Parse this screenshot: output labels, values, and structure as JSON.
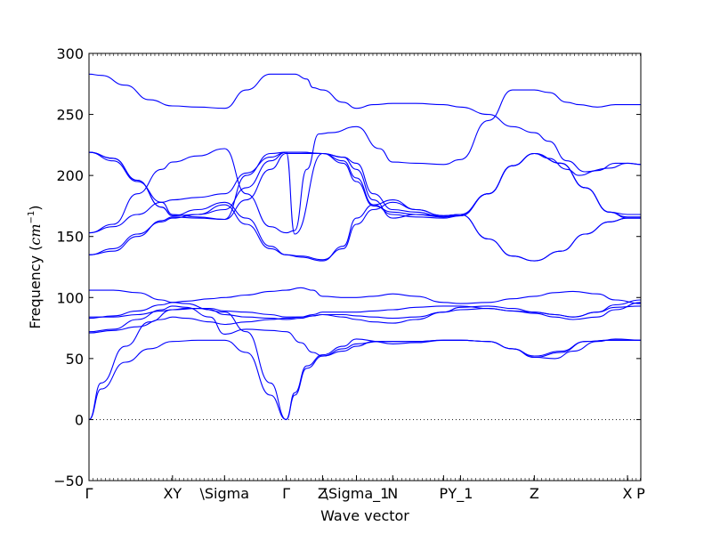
{
  "chart_data": {
    "type": "line",
    "title": "",
    "xlabel": "Wave vector",
    "ylabel_text": "Frequency (",
    "ylabel_math": "cm",
    "ylabel_exp": "−1",
    "ylabel_close": ")",
    "ylim": [
      -50,
      300
    ],
    "yticks": [
      -50,
      0,
      50,
      100,
      150,
      200,
      250,
      300
    ],
    "xlim": [
      0,
      4.56
    ],
    "xticks": [
      {
        "x": 0.0,
        "label": "Γ"
      },
      {
        "x": 0.69,
        "label": "XY"
      },
      {
        "x": 1.12,
        "label": "\\Sigma"
      },
      {
        "x": 1.63,
        "label": "Γ"
      },
      {
        "x": 1.93,
        "label": "Z"
      },
      {
        "x": 2.21,
        "label": "\\Sigma_1"
      },
      {
        "x": 2.51,
        "label": "N"
      },
      {
        "x": 2.93,
        "label": "P"
      },
      {
        "x": 3.07,
        "label": "Y_1"
      },
      {
        "x": 3.68,
        "label": "Z"
      },
      {
        "x": 4.45,
        "label": "X"
      },
      {
        "x": 4.56,
        "label": "P"
      }
    ],
    "zero_line": {
      "y": 0,
      "style": "dotted"
    },
    "line_color": "#0000ff",
    "series": [
      {
        "x": [
          0,
          0.1,
          0.3,
          0.5,
          0.69,
          0.9,
          1.12,
          1.3,
          1.5,
          1.63,
          1.7,
          1.8,
          1.93,
          2.1,
          2.21,
          2.4,
          2.51,
          2.7,
          2.93,
          3.07,
          3.3,
          3.5,
          3.68,
          3.9,
          4.1,
          4.3,
          4.45,
          4.56
        ],
        "y": [
          0,
          25,
          47,
          58,
          64,
          65,
          65,
          55,
          20,
          0,
          20,
          42,
          52,
          58,
          62,
          64,
          64,
          64,
          65,
          65,
          64,
          58,
          51,
          55,
          64,
          65,
          65,
          65
        ]
      },
      {
        "x": [
          0,
          0.1,
          0.3,
          0.5,
          0.69,
          0.9,
          1.12,
          1.3,
          1.5,
          1.63,
          1.7,
          1.8,
          1.93,
          2.1,
          2.21,
          2.4,
          2.51,
          2.7,
          2.93,
          3.07,
          3.3,
          3.5,
          3.68,
          3.9,
          4.1,
          4.3,
          4.45,
          4.56
        ],
        "y": [
          0,
          30,
          60,
          80,
          90,
          91,
          88,
          72,
          30,
          0,
          22,
          44,
          53,
          60,
          66,
          64,
          64,
          64,
          65,
          65,
          64,
          58,
          52,
          56,
          64,
          65,
          65,
          65
        ]
      },
      {
        "x": [
          0,
          0.2,
          0.4,
          0.6,
          0.69,
          0.8,
          1.0,
          1.12,
          1.3,
          1.5,
          1.63,
          1.75,
          1.85,
          1.93,
          2.1,
          2.21,
          2.35,
          2.51,
          2.7,
          2.93,
          3.07,
          3.3,
          3.5,
          3.68,
          3.85,
          4.0,
          4.2,
          4.35,
          4.56
        ],
        "y": [
          72,
          74,
          82,
          90,
          93,
          92,
          84,
          70,
          74,
          73,
          72,
          63,
          55,
          52,
          56,
          60,
          64,
          62,
          63,
          65,
          65,
          64,
          58,
          51,
          50,
          56,
          64,
          66,
          65
        ]
      },
      {
        "x": [
          0,
          0.2,
          0.4,
          0.6,
          0.69,
          0.8,
          1.0,
          1.12,
          1.3,
          1.5,
          1.63,
          1.75,
          1.85,
          1.93,
          2.1,
          2.21,
          2.35,
          2.51,
          2.7,
          2.93,
          3.07,
          3.3,
          3.5,
          3.68,
          3.85,
          4.0,
          4.2,
          4.35,
          4.56
        ],
        "y": [
          84,
          84,
          86,
          89,
          90,
          91,
          91,
          89,
          88,
          86,
          84,
          84,
          86,
          88,
          88,
          88,
          89,
          90,
          92,
          93,
          93,
          91,
          89,
          88,
          86,
          84,
          88,
          92,
          93
        ]
      },
      {
        "x": [
          0,
          0.2,
          0.4,
          0.6,
          0.69,
          0.8,
          1.0,
          1.12,
          1.3,
          1.5,
          1.63,
          1.75,
          1.85,
          1.93,
          2.1,
          2.21,
          2.35,
          2.51,
          2.7,
          2.93,
          3.07,
          3.3,
          3.5,
          3.68,
          3.85,
          4.0,
          4.2,
          4.35,
          4.56
        ],
        "y": [
          83,
          85,
          89,
          94,
          96,
          95,
          90,
          86,
          84,
          83,
          82,
          83,
          85,
          86,
          86,
          85,
          84,
          83,
          84,
          88,
          90,
          91,
          89,
          87,
          84,
          82,
          84,
          90,
          96
        ]
      },
      {
        "x": [
          0,
          0.2,
          0.4,
          0.6,
          0.69,
          0.8,
          1.0,
          1.12,
          1.3,
          1.5,
          1.63,
          1.75,
          1.85,
          1.93,
          2.1,
          2.21,
          2.35,
          2.51,
          2.7,
          2.93,
          3.07,
          3.3,
          3.5,
          3.68,
          3.85,
          4.0,
          4.2,
          4.35,
          4.56
        ],
        "y": [
          106,
          106,
          104,
          98,
          96,
          97,
          99,
          100,
          102,
          105,
          106,
          108,
          106,
          101,
          100,
          100,
          101,
          103,
          101,
          96,
          95,
          96,
          99,
          101,
          104,
          105,
          103,
          98,
          95
        ]
      },
      {
        "x": [
          0,
          0.2,
          0.4,
          0.6,
          0.69,
          0.8,
          1.0,
          1.12,
          1.3,
          1.5,
          1.63,
          1.75,
          1.85,
          1.93,
          2.1,
          2.21,
          2.35,
          2.51,
          2.7,
          2.93,
          3.07,
          3.3,
          3.5,
          3.68,
          3.85,
          4.0,
          4.2,
          4.35,
          4.56
        ],
        "y": [
          71,
          73,
          76,
          82,
          84,
          83,
          80,
          78,
          80,
          82,
          83,
          84,
          85,
          86,
          84,
          82,
          80,
          79,
          82,
          88,
          92,
          93,
          91,
          88,
          86,
          84,
          88,
          94,
          98
        ]
      },
      {
        "x": [
          0,
          0.2,
          0.4,
          0.6,
          0.69,
          0.9,
          1.12,
          1.3,
          1.5,
          1.63,
          1.75,
          1.93,
          2.1,
          2.21,
          2.35,
          2.51,
          2.7,
          2.93,
          3.07,
          3.3,
          3.5,
          3.68,
          3.9,
          4.1,
          4.3,
          4.45,
          4.56
        ],
        "y": [
          135,
          138,
          150,
          163,
          166,
          165,
          164,
          180,
          205,
          218,
          218,
          218,
          215,
          205,
          180,
          165,
          168,
          166,
          168,
          185,
          208,
          218,
          210,
          190,
          170,
          166,
          166
        ]
      },
      {
        "x": [
          0,
          0.2,
          0.4,
          0.6,
          0.69,
          0.9,
          1.12,
          1.3,
          1.5,
          1.63,
          1.75,
          1.93,
          2.1,
          2.21,
          2.35,
          2.51,
          2.7,
          2.93,
          3.07,
          3.3,
          3.5,
          3.68,
          3.9,
          4.1,
          4.3,
          4.45,
          4.56
        ],
        "y": [
          135,
          140,
          152,
          162,
          165,
          168,
          172,
          190,
          212,
          219,
          219,
          218,
          210,
          195,
          175,
          170,
          168,
          167,
          168,
          185,
          208,
          218,
          210,
          190,
          170,
          165,
          165
        ]
      },
      {
        "x": [
          0,
          0.2,
          0.4,
          0.6,
          0.69,
          0.9,
          1.12,
          1.3,
          1.5,
          1.63,
          1.75,
          1.93,
          2.1,
          2.21,
          2.35,
          2.51,
          2.7,
          2.93,
          3.07,
          3.3,
          3.5,
          3.68,
          3.9,
          4.1,
          4.3,
          4.45,
          4.56
        ],
        "y": [
          153,
          158,
          168,
          178,
          180,
          182,
          185,
          202,
          215,
          219,
          219,
          218,
          212,
          198,
          176,
          168,
          166,
          165,
          167,
          185,
          208,
          218,
          210,
          190,
          170,
          168,
          168
        ]
      },
      {
        "x": [
          0,
          0.2,
          0.4,
          0.6,
          0.69,
          0.9,
          1.12,
          1.3,
          1.5,
          1.63,
          1.75,
          1.93,
          2.1,
          2.21,
          2.35,
          2.51,
          2.7,
          2.93,
          3.07,
          3.3,
          3.5,
          3.68,
          3.9,
          4.1,
          4.3,
          4.45,
          4.56
        ],
        "y": [
          219,
          214,
          196,
          174,
          167,
          168,
          176,
          160,
          140,
          135,
          133,
          130,
          142,
          165,
          176,
          180,
          172,
          167,
          168,
          148,
          134,
          130,
          138,
          152,
          162,
          165,
          165
        ]
      },
      {
        "x": [
          0,
          0.2,
          0.4,
          0.6,
          0.69,
          0.9,
          1.12,
          1.3,
          1.5,
          1.63,
          1.75,
          1.93,
          2.1,
          2.21,
          2.35,
          2.51,
          2.7,
          2.93,
          3.07,
          3.3,
          3.5,
          3.68,
          3.9,
          4.1,
          4.3,
          4.45,
          4.56
        ],
        "y": [
          219,
          214,
          196,
          174,
          167,
          172,
          178,
          165,
          142,
          135,
          134,
          131,
          140,
          160,
          172,
          178,
          172,
          167,
          168,
          148,
          134,
          130,
          138,
          152,
          162,
          165,
          165
        ]
      },
      {
        "x": [
          0,
          0.2,
          0.4,
          0.6,
          0.69,
          0.9,
          1.12,
          1.3,
          1.5,
          1.63,
          1.7,
          1.93,
          2.1,
          2.21,
          2.35,
          2.51,
          2.7,
          2.93,
          3.07,
          3.3,
          3.5,
          3.68,
          3.8,
          3.95,
          4.05,
          4.2,
          4.35,
          4.45,
          4.56
        ],
        "y": [
          219,
          212,
          195,
          178,
          168,
          166,
          164,
          200,
          218,
          219,
          152,
          218,
          215,
          210,
          185,
          172,
          170,
          166,
          167,
          185,
          208,
          218,
          214,
          205,
          200,
          204,
          210,
          210,
          209
        ]
      },
      {
        "x": [
          0,
          0.2,
          0.4,
          0.6,
          0.69,
          0.9,
          1.12,
          1.3,
          1.5,
          1.63,
          1.7,
          1.8,
          1.9,
          2.0,
          2.21,
          2.4,
          2.51,
          2.7,
          2.93,
          3.07,
          3.3,
          3.5,
          3.68,
          3.8,
          3.95,
          4.05,
          4.2,
          4.35,
          4.45,
          4.56
        ],
        "y": [
          153,
          160,
          185,
          205,
          211,
          216,
          222,
          185,
          158,
          153,
          155,
          205,
          234,
          235,
          240,
          222,
          211,
          210,
          209,
          213,
          245,
          270,
          270,
          268,
          260,
          258,
          256,
          258,
          258,
          258
        ]
      },
      {
        "x": [
          0,
          0.1,
          0.3,
          0.5,
          0.69,
          0.9,
          1.12,
          1.3,
          1.5,
          1.63,
          1.7,
          1.8,
          1.85,
          1.93,
          2.1,
          2.21,
          2.35,
          2.51,
          2.7,
          2.93,
          3.07,
          3.3,
          3.5,
          3.68,
          3.8,
          3.95,
          4.1,
          4.3,
          4.45,
          4.56
        ],
        "y": [
          283,
          282,
          274,
          262,
          257,
          256,
          255,
          270,
          283,
          283,
          283,
          279,
          272,
          270,
          260,
          255,
          258,
          259,
          259,
          258,
          256,
          250,
          240,
          235,
          228,
          212,
          203,
          206,
          210,
          209
        ]
      }
    ]
  }
}
